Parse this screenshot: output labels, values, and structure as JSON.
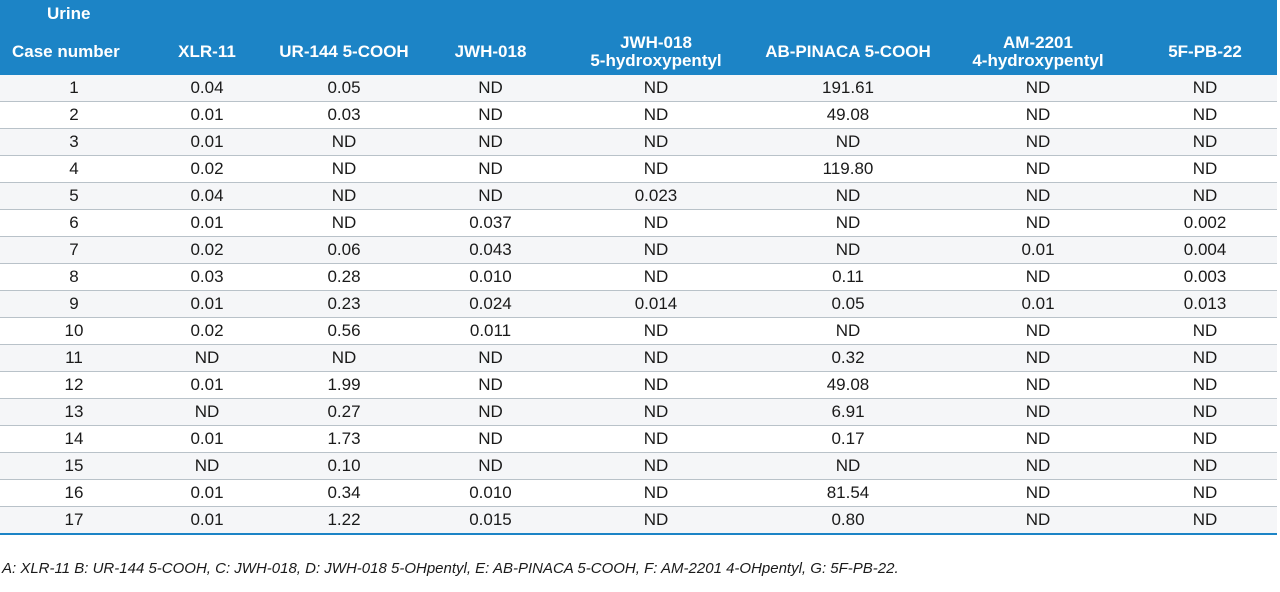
{
  "group_label": "Urine",
  "columns": [
    "Case number",
    "XLR-11",
    "UR-144 5-COOH",
    "JWH-018",
    "JWH-018\n5-hydroxypentyl",
    "AB-PINACA 5-COOH",
    "AM-2201\n4-hydroxypentyl",
    "5F-PB-22"
  ],
  "rows": [
    [
      "1",
      "0.04",
      "0.05",
      "ND",
      "ND",
      "191.61",
      "ND",
      "ND"
    ],
    [
      "2",
      "0.01",
      "0.03",
      "ND",
      "ND",
      "49.08",
      "ND",
      "ND"
    ],
    [
      "3",
      "0.01",
      "ND",
      "ND",
      "ND",
      "ND",
      "ND",
      "ND"
    ],
    [
      "4",
      "0.02",
      "ND",
      "ND",
      "ND",
      "119.80",
      "ND",
      "ND"
    ],
    [
      "5",
      "0.04",
      "ND",
      "ND",
      "0.023",
      "ND",
      "ND",
      "ND"
    ],
    [
      "6",
      "0.01",
      "ND",
      "0.037",
      "ND",
      "ND",
      "ND",
      "0.002"
    ],
    [
      "7",
      "0.02",
      "0.06",
      "0.043",
      "ND",
      "ND",
      "0.01",
      "0.004"
    ],
    [
      "8",
      "0.03",
      "0.28",
      "0.010",
      "ND",
      "0.11",
      "ND",
      "0.003"
    ],
    [
      "9",
      "0.01",
      "0.23",
      "0.024",
      "0.014",
      "0.05",
      "0.01",
      "0.013"
    ],
    [
      "10",
      "0.02",
      "0.56",
      "0.011",
      "ND",
      "ND",
      "ND",
      "ND"
    ],
    [
      "11",
      "ND",
      "ND",
      "ND",
      "ND",
      "0.32",
      "ND",
      "ND"
    ],
    [
      "12",
      "0.01",
      "1.99",
      "ND",
      "ND",
      "49.08",
      "ND",
      "ND"
    ],
    [
      "13",
      "ND",
      "0.27",
      "ND",
      "ND",
      "6.91",
      "ND",
      "ND"
    ],
    [
      "14",
      "0.01",
      "1.73",
      "ND",
      "ND",
      "0.17",
      "ND",
      "ND"
    ],
    [
      "15",
      "ND",
      "0.10",
      "ND",
      "ND",
      "ND",
      "ND",
      "ND"
    ],
    [
      "16",
      "0.01",
      "0.34",
      "0.010",
      "ND",
      "81.54",
      "ND",
      "ND"
    ],
    [
      "17",
      "0.01",
      "1.22",
      "0.015",
      "ND",
      "0.80",
      "ND",
      "ND"
    ]
  ],
  "footnote": "A: XLR-11 B: UR-144 5-COOH, C: JWH-018, D: JWH-018 5-OHpentyl, E: AB-PINACA 5-COOH, F: AM-2201 4-OHpentyl, G: 5F-PB-22.",
  "colors": {
    "header_bg": "#1c84c6",
    "header_text": "#ffffff",
    "row_alt": "#f5f6f8",
    "row_rule": "#b9c2c9"
  }
}
